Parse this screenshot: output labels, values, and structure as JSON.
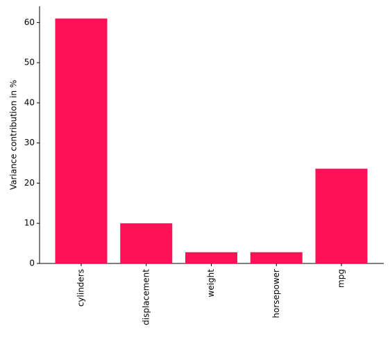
{
  "chart_data": {
    "type": "bar",
    "y_label": "Variance contribution in %",
    "categories": [
      "cylinders",
      "displacement",
      "weight",
      "horsepower",
      "mpg"
    ],
    "values": [
      61,
      10,
      2.8,
      2.8,
      23.6
    ],
    "color": "#fe1157",
    "ylim": [
      0,
      64.05
    ],
    "yticks": [
      0,
      10,
      20,
      30,
      40,
      50,
      60
    ],
    "grid": false
  }
}
